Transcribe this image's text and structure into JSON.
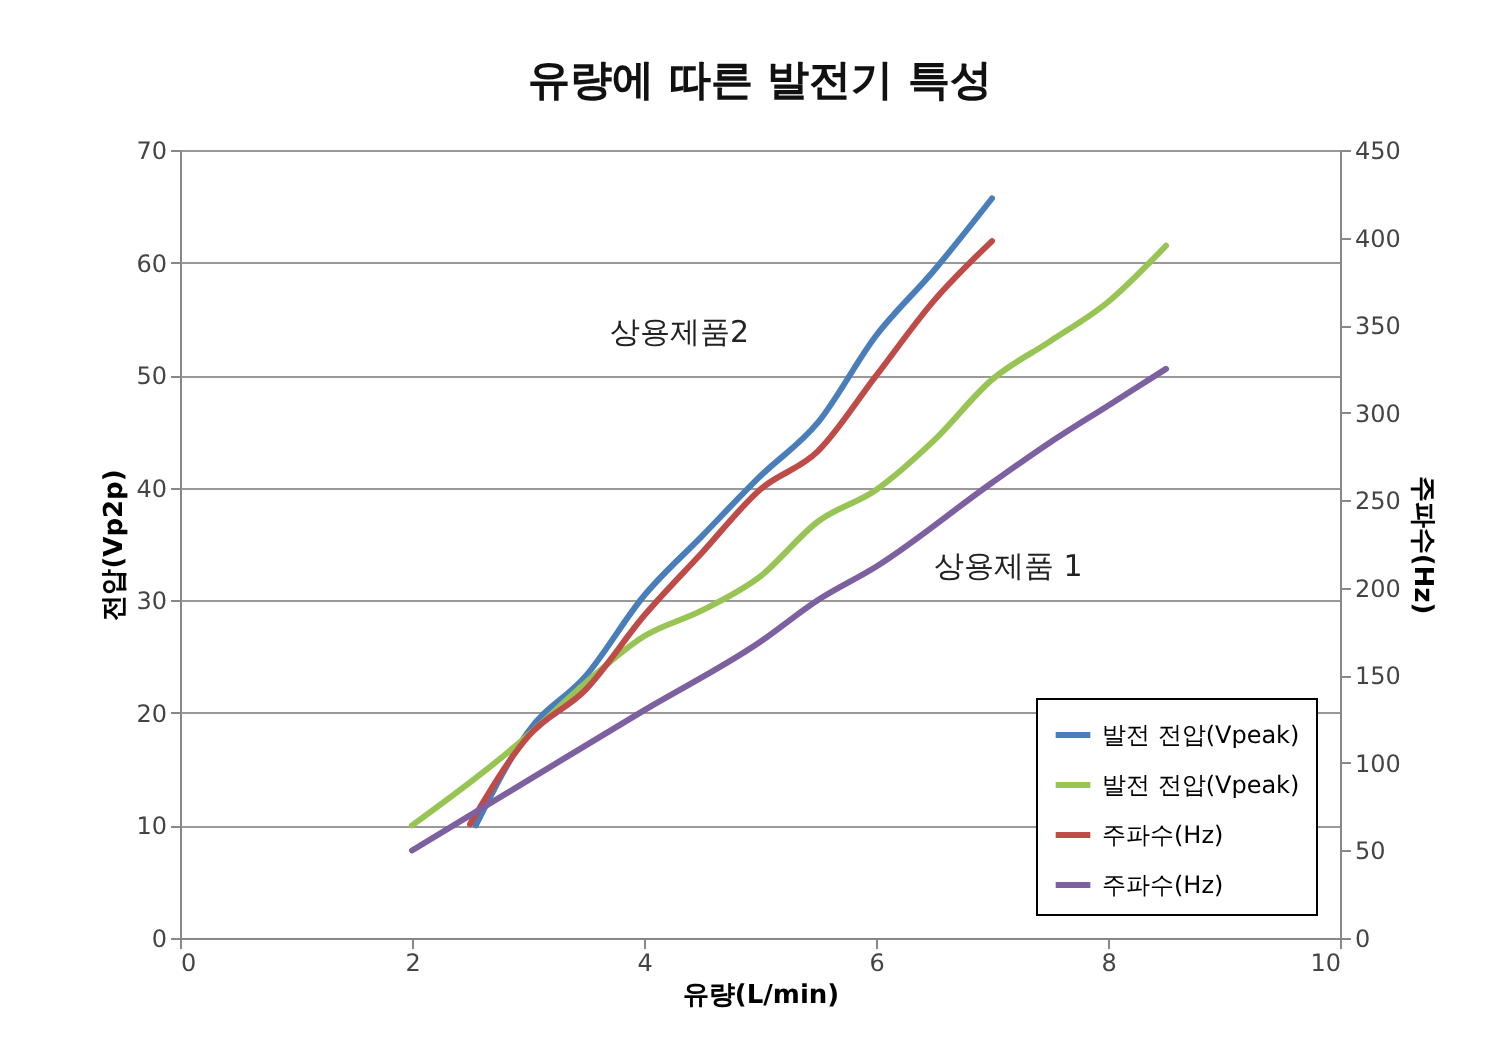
{
  "chart_data": {
    "type": "line",
    "title": "유량에 따른 발전기 특성",
    "xlabel": "유량(L/min)",
    "ylabel": "전압(Vp2p)",
    "y2label": "주파수(Hz)",
    "xlim": [
      0,
      10
    ],
    "xticks": [
      0,
      2,
      4,
      6,
      8,
      10
    ],
    "ylim": [
      0,
      70
    ],
    "yticks": [
      0,
      10,
      20,
      30,
      40,
      50,
      60,
      70
    ],
    "y2lim": [
      0,
      450
    ],
    "y2ticks": [
      0,
      50,
      100,
      150,
      200,
      250,
      300,
      350,
      400,
      450
    ],
    "grid": "y",
    "legend": "bottom right",
    "line_style": "solid",
    "marker": "none",
    "series": [
      {
        "name": "발전 전압(Vpeak)",
        "color": "#4a7ebb",
        "x": [
          2.55,
          3,
          3.5,
          4,
          4.5,
          5,
          5.5,
          6,
          6.5,
          7
        ],
        "values": [
          10,
          18.3,
          23.3,
          30.4,
          35.7,
          41,
          45.8,
          53.5,
          59.3,
          65.7
        ]
      },
      {
        "name": "발전 전압(Vpeak)",
        "color": "#98c454",
        "x": [
          2,
          3,
          3.5,
          4,
          4.5,
          5,
          5.5,
          6,
          6.5,
          7,
          7.5,
          8,
          8.5
        ],
        "values": [
          10,
          18,
          22.7,
          26.8,
          29.1,
          32.1,
          37,
          39.8,
          44.2,
          49.6,
          53,
          56.5,
          61.5
        ]
      },
      {
        "name": "주파수(Hz)",
        "color": "#be4b48",
        "axis": "y2",
        "x": [
          2.5,
          3,
          3.5,
          4,
          4.5,
          5,
          5.5,
          6,
          6.5,
          7
        ],
        "values": [
          65,
          115,
          142,
          184,
          220,
          256,
          278,
          321,
          364,
          398
        ]
      },
      {
        "name": "주파수(Hz)",
        "color": "#7d60a0",
        "axis": "y2",
        "x": [
          2,
          3,
          4,
          5,
          5.5,
          6,
          7,
          7.5,
          8,
          8.5
        ],
        "values": [
          50,
          90,
          130,
          169,
          193,
          212,
          260,
          283,
          304,
          325
        ]
      }
    ],
    "annotations": [
      "상용제품2",
      "상용제품 1"
    ]
  }
}
